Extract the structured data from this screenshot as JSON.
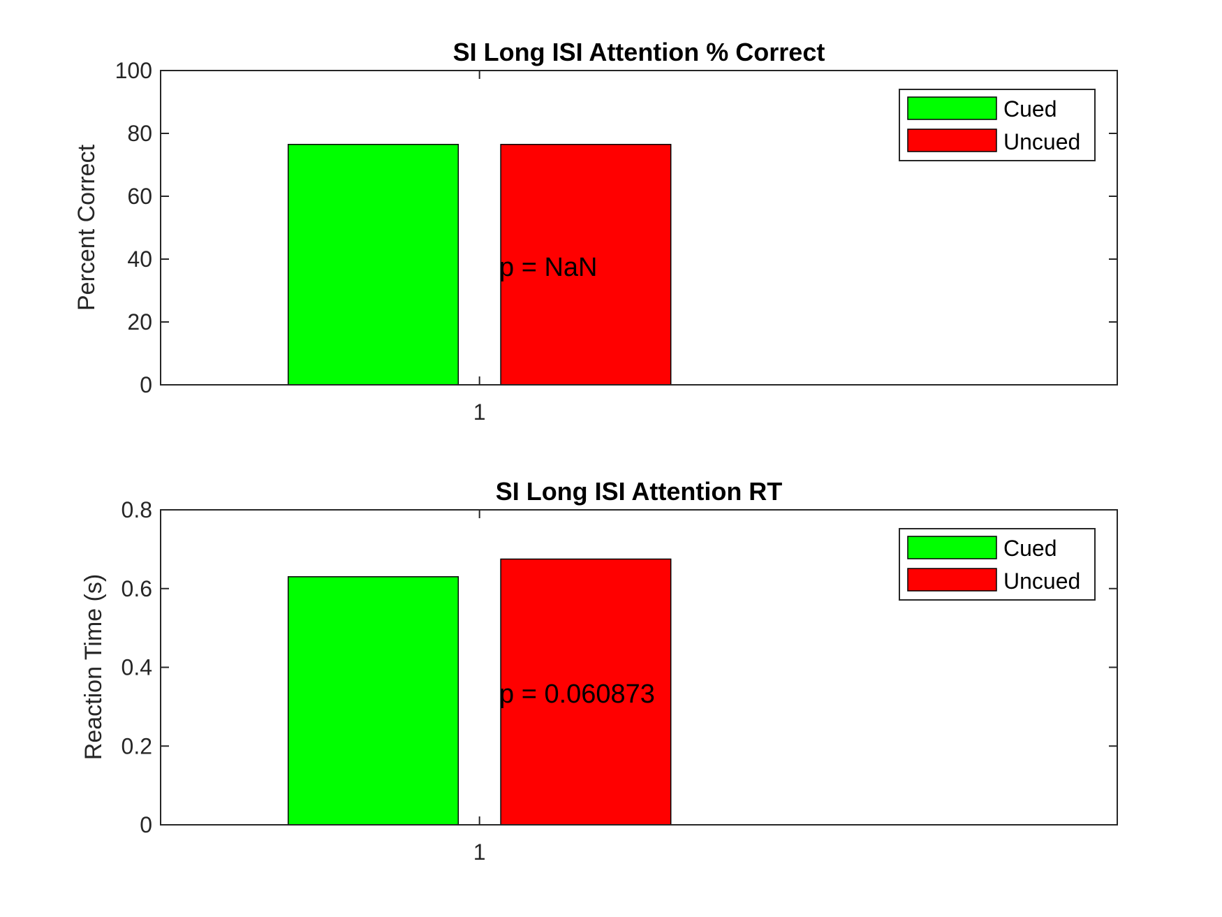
{
  "chart_data": [
    {
      "type": "bar",
      "title": "SI Long ISI Attention % Correct",
      "xlabel": "",
      "ylabel": "Percent Correct",
      "categories": [
        "1"
      ],
      "series": [
        {
          "name": "Cued",
          "values": [
            76.5
          ],
          "color": "#00ff00"
        },
        {
          "name": "Uncued",
          "values": [
            76.5
          ],
          "color": "#ff0000"
        }
      ],
      "ylim": [
        0,
        100
      ],
      "yticks": [
        "0",
        "20",
        "40",
        "60",
        "80",
        "100"
      ],
      "annotation": "p = NaN",
      "legend": "top-right",
      "grid": false
    },
    {
      "type": "bar",
      "title": "SI Long ISI Attention RT",
      "xlabel": "",
      "ylabel": "Reaction Time (s)",
      "categories": [
        "1"
      ],
      "series": [
        {
          "name": "Cued",
          "values": [
            0.63
          ],
          "color": "#00ff00"
        },
        {
          "name": "Uncued",
          "values": [
            0.675
          ],
          "color": "#ff0000"
        }
      ],
      "ylim": [
        0,
        0.8
      ],
      "yticks": [
        "0",
        "0.2",
        "0.4",
        "0.6",
        "0.8"
      ],
      "annotation": "p = 0.060873",
      "legend": "top-right",
      "grid": false
    }
  ]
}
